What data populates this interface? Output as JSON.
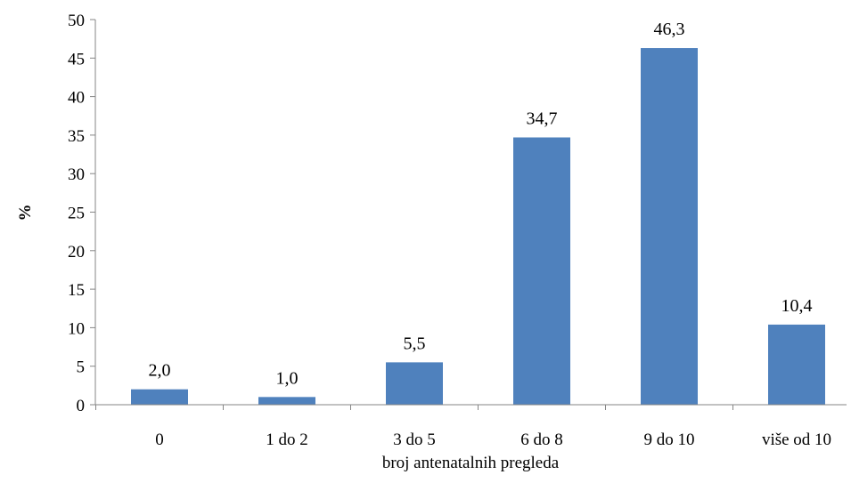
{
  "chart_data": {
    "type": "bar",
    "title": "",
    "xlabel": "broj antenatalnih pregleda",
    "ylabel": "%",
    "categories": [
      "0",
      "1 do 2",
      "3  do 5",
      "6 do 8",
      "9 do 10",
      "više od 10"
    ],
    "values": [
      2.0,
      1.0,
      5.5,
      34.7,
      46.3,
      10.4
    ],
    "data_labels": [
      "2,0",
      "1,0",
      "5,5",
      "34,7",
      "46,3",
      "10,4"
    ],
    "ylim": [
      0,
      50
    ],
    "yticks": [
      0,
      5,
      10,
      15,
      20,
      25,
      30,
      35,
      40,
      45,
      50
    ],
    "grid": false,
    "legend": "none",
    "bar_color": "#4F81BD",
    "axis_color": "#868686"
  }
}
